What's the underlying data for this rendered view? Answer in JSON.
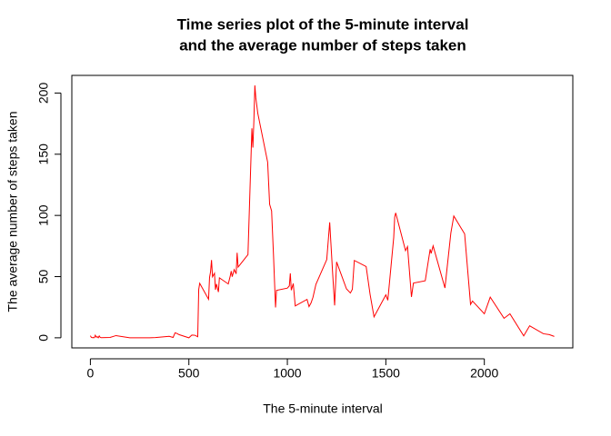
{
  "chart_data": {
    "type": "line",
    "title": [
      "Time series plot of the 5-minute interval",
      "and the average number of steps taken"
    ],
    "x_label": "The 5-minute interval",
    "y_label": "The average number of steps taken",
    "color": "red",
    "xlim": [
      -94.2,
      2449.2
    ],
    "ylim": [
      -8.25,
      214.42
    ],
    "xticks": [
      0,
      500,
      1000,
      1500,
      2000
    ],
    "yticks": [
      0,
      50,
      100,
      150,
      200
    ],
    "x": [
      0,
      5,
      10,
      15,
      20,
      25,
      30,
      35,
      40,
      45,
      50,
      55,
      100,
      130,
      200,
      230,
      300,
      330,
      400,
      420,
      430,
      440,
      450,
      500,
      515,
      530,
      545,
      550,
      555,
      600,
      605,
      610,
      615,
      620,
      630,
      635,
      640,
      650,
      655,
      700,
      710,
      715,
      720,
      730,
      740,
      745,
      750,
      800,
      820,
      825,
      830,
      835,
      840,
      850,
      900,
      910,
      920,
      930,
      935,
      940,
      945,
      1000,
      1010,
      1015,
      1020,
      1030,
      1040,
      1100,
      1110,
      1120,
      1130,
      1145,
      1200,
      1215,
      1230,
      1240,
      1250,
      1300,
      1320,
      1330,
      1340,
      1400,
      1420,
      1440,
      1500,
      1510,
      1540,
      1545,
      1550,
      1600,
      1610,
      1630,
      1640,
      1700,
      1725,
      1730,
      1740,
      1800,
      1830,
      1845,
      1900,
      1930,
      1940,
      2000,
      2030,
      2100,
      2130,
      2200,
      2230,
      2300,
      2330,
      2355
    ],
    "values": [
      1.7,
      0.3,
      0.1,
      0.2,
      0.1,
      2.1,
      0.5,
      0.9,
      0,
      1.5,
      0.3,
      0.1,
      0.3,
      1.8,
      0,
      0,
      0,
      0.2,
      1.2,
      0.3,
      4.1,
      3.5,
      2.6,
      0,
      2.2,
      2.1,
      0.9,
      39.5,
      44.5,
      31.5,
      49.3,
      53.8,
      63.5,
      49.9,
      52.7,
      39.3,
      44,
      37.4,
      49,
      44,
      50.5,
      54.5,
      49.9,
      55.7,
      52.3,
      69.5,
      57.8,
      68,
      171.2,
      155.4,
      177.3,
      206.2,
      195.9,
      183.4,
      143.5,
      109.1,
      103.7,
      66.2,
      45.2,
      24.8,
      38.8,
      40.6,
      42.4,
      52.7,
      38.9,
      44.3,
      26,
      31.4,
      25.5,
      28.4,
      33,
      43.7,
      63.9,
      94.3,
      52.5,
      26.5,
      62,
      40,
      36.6,
      39.6,
      63.2,
      58.2,
      35.5,
      17.1,
      35.1,
      30.7,
      82,
      98.7,
      102.1,
      71.2,
      74.5,
      33.4,
      44.7,
      46.6,
      72.4,
      68.9,
      75.1,
      40.7,
      85.6,
      99.5,
      84.9,
      27.3,
      30,
      19.6,
      33.2,
      15.9,
      19.6,
      1.6,
      9.8,
      3.3,
      2.6,
      1.1
    ]
  }
}
